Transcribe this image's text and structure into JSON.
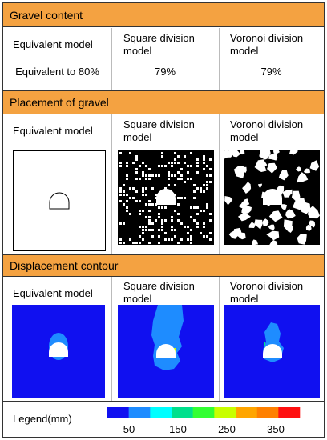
{
  "sections": [
    {
      "title": "Gravel content",
      "columns": [
        {
          "label": "Equivalent model",
          "value": "Equivalent to 80%"
        },
        {
          "label": "Square division model",
          "value": "79%"
        },
        {
          "label": "Voronoi division model",
          "value": "79%"
        }
      ]
    },
    {
      "title": "Placement of gravel",
      "columns": [
        "Equivalent model",
        "Square division model",
        "Voronoi division model"
      ]
    },
    {
      "title": "Displacement contour",
      "columns": [
        "Equivalent model",
        "Square division model",
        "Voronoi division model"
      ]
    }
  ],
  "legend": {
    "label": "Legend(mm)",
    "colors": [
      "#1010f0",
      "#1e8cff",
      "#00ffff",
      "#00e08c",
      "#33ff33",
      "#c8ff00",
      "#ffa500",
      "#ff8000",
      "#ff1010"
    ],
    "ticks": [
      "50",
      "150",
      "250",
      "350"
    ]
  }
}
